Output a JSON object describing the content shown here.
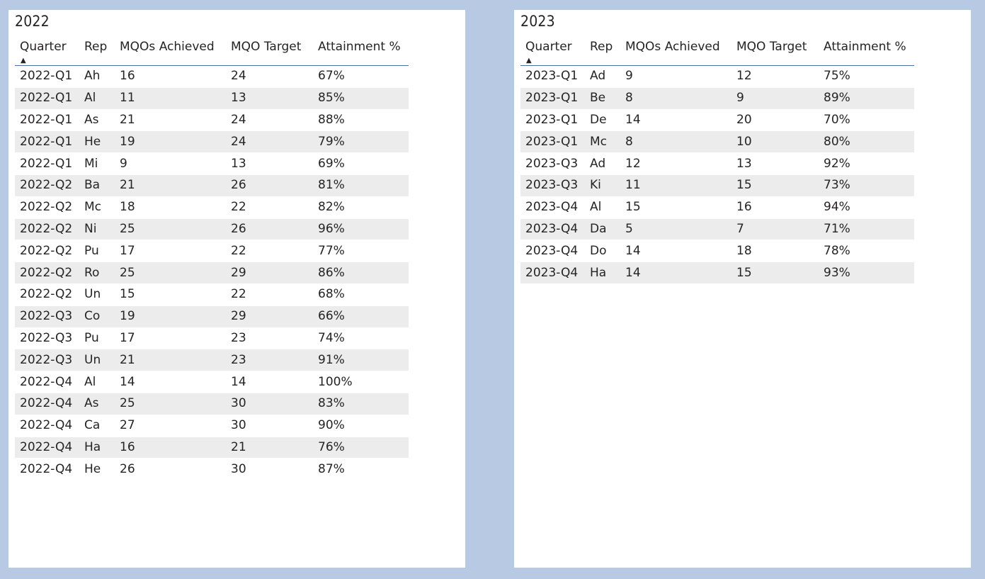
{
  "colors": {
    "page_background": "#b8c9e4",
    "panel_background": "#ffffff",
    "header_rule": "#4a6fa5",
    "band_row": "#ececec",
    "text": "#252423"
  },
  "sort_icon": "triangle-up-icon",
  "columns": [
    "Quarter",
    "Rep",
    "MQOs Achieved",
    "MQO Target",
    "Attainment %"
  ],
  "tables": [
    {
      "title": "2022",
      "rows": [
        [
          "2022-Q1",
          "Ah",
          "16",
          "24",
          "67%"
        ],
        [
          "2022-Q1",
          "Al",
          "11",
          "13",
          "85%"
        ],
        [
          "2022-Q1",
          "As",
          "21",
          "24",
          "88%"
        ],
        [
          "2022-Q1",
          "He",
          "19",
          "24",
          "79%"
        ],
        [
          "2022-Q1",
          "Mi",
          "9",
          "13",
          "69%"
        ],
        [
          "2022-Q2",
          "Ba",
          "21",
          "26",
          "81%"
        ],
        [
          "2022-Q2",
          "Mc",
          "18",
          "22",
          "82%"
        ],
        [
          "2022-Q2",
          "Ni",
          "25",
          "26",
          "96%"
        ],
        [
          "2022-Q2",
          "Pu",
          "17",
          "22",
          "77%"
        ],
        [
          "2022-Q2",
          "Ro",
          "25",
          "29",
          "86%"
        ],
        [
          "2022-Q2",
          "Un",
          "15",
          "22",
          "68%"
        ],
        [
          "2022-Q3",
          "Co",
          "19",
          "29",
          "66%"
        ],
        [
          "2022-Q3",
          "Pu",
          "17",
          "23",
          "74%"
        ],
        [
          "2022-Q3",
          "Un",
          "21",
          "23",
          "91%"
        ],
        [
          "2022-Q4",
          "Al",
          "14",
          "14",
          "100%"
        ],
        [
          "2022-Q4",
          "As",
          "25",
          "30",
          "83%"
        ],
        [
          "2022-Q4",
          "Ca",
          "27",
          "30",
          "90%"
        ],
        [
          "2022-Q4",
          "Ha",
          "16",
          "21",
          "76%"
        ],
        [
          "2022-Q4",
          "He",
          "26",
          "30",
          "87%"
        ]
      ]
    },
    {
      "title": "2023",
      "rows": [
        [
          "2023-Q1",
          "Ad",
          "9",
          "12",
          "75%"
        ],
        [
          "2023-Q1",
          "Be",
          "8",
          "9",
          "89%"
        ],
        [
          "2023-Q1",
          "De",
          "14",
          "20",
          "70%"
        ],
        [
          "2023-Q1",
          "Mc",
          "8",
          "10",
          "80%"
        ],
        [
          "2023-Q3",
          "Ad",
          "12",
          "13",
          "92%"
        ],
        [
          "2023-Q3",
          "Ki",
          "11",
          "15",
          "73%"
        ],
        [
          "2023-Q4",
          "Al",
          "15",
          "16",
          "94%"
        ],
        [
          "2023-Q4",
          "Da",
          "5",
          "7",
          "71%"
        ],
        [
          "2023-Q4",
          "Do",
          "14",
          "18",
          "78%"
        ],
        [
          "2023-Q4",
          "Ha",
          "14",
          "15",
          "93%"
        ]
      ]
    }
  ]
}
